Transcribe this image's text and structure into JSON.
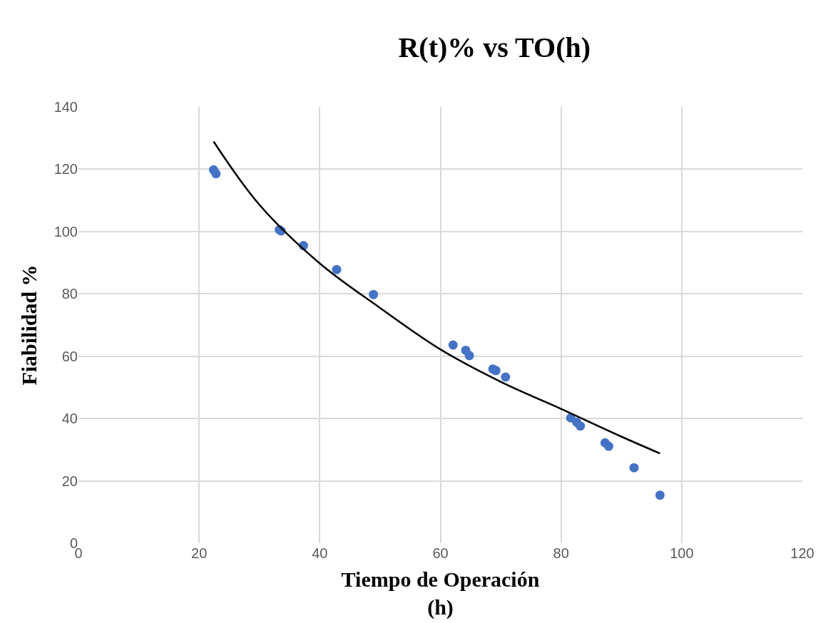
{
  "chart_data": {
    "type": "scatter",
    "title": "R(t)% vs TO(h)",
    "xlabel": "Tiempo de Operación\n(h)",
    "ylabel": "Fiabilidad %",
    "xlim": [
      0,
      120
    ],
    "xticks": [
      0,
      20,
      40,
      60,
      80,
      100,
      120
    ],
    "ylim": [
      0,
      140
    ],
    "yticks": [
      0,
      20,
      40,
      60,
      80,
      100,
      120,
      140
    ],
    "grid": true,
    "marker": "circle",
    "series": [
      {
        "color": "#4472c4",
        "x": [
          22.4,
          22.8,
          33.3,
          33.6,
          37.3,
          42.8,
          48.9,
          62.1,
          64.2,
          64.8,
          68.7,
          69.2,
          70.8,
          81.6,
          82.6,
          83.2,
          87.3,
          87.9,
          92.1,
          96.4
        ],
        "values": [
          119.8,
          118.6,
          100.6,
          100.2,
          95.5,
          87.8,
          79.8,
          63.6,
          61.9,
          60.2,
          55.9,
          55.4,
          53.3,
          40.2,
          38.8,
          37.6,
          32.2,
          31.1,
          24.2,
          15.4
        ]
      },
      {
        "type": "line",
        "color": "#000000",
        "marker": "none",
        "x": [
          22.4,
          30,
          40,
          50,
          60,
          70,
          80,
          90,
          96.4
        ],
        "values": [
          128.9,
          108.6,
          89.8,
          75.5,
          62.2,
          51.8,
          43.1,
          34.2,
          28.8
        ]
      }
    ]
  }
}
